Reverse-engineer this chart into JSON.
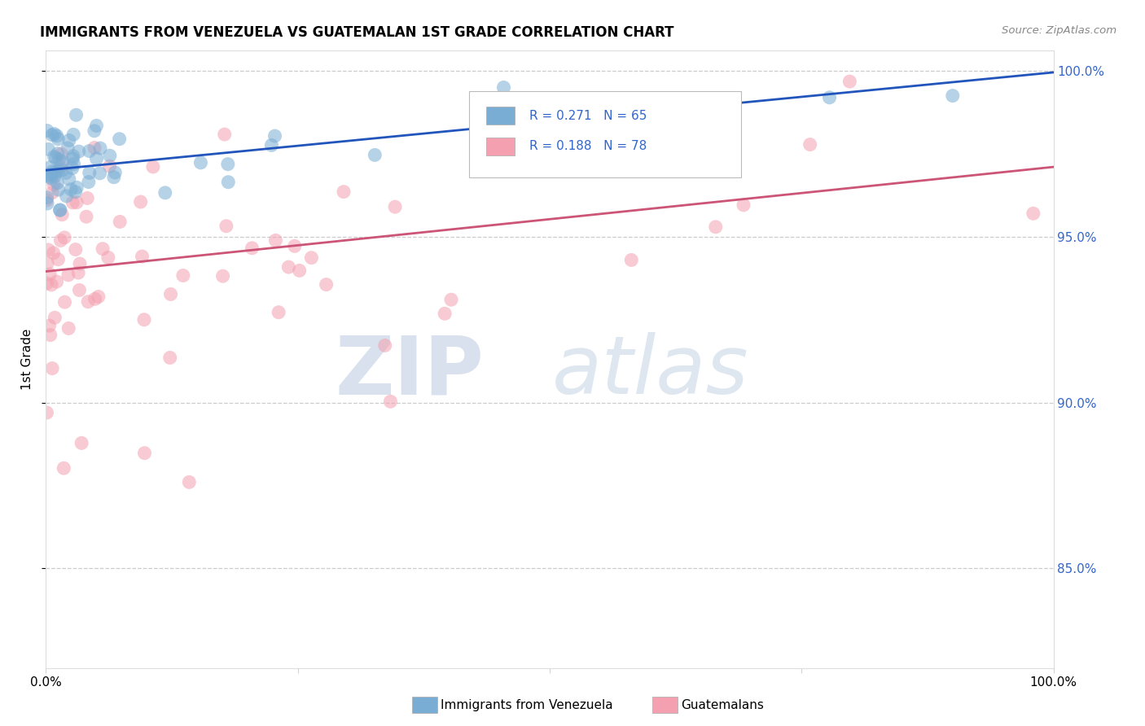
{
  "title": "IMMIGRANTS FROM VENEZUELA VS GUATEMALAN 1ST GRADE CORRELATION CHART",
  "source": "Source: ZipAtlas.com",
  "ylabel": "1st Grade",
  "legend_blue_label": "Immigrants from Venezuela",
  "legend_pink_label": "Guatemalans",
  "r_blue": 0.271,
  "n_blue": 65,
  "r_pink": 0.188,
  "n_pink": 78,
  "blue_color": "#7aadd4",
  "pink_color": "#f4a0b0",
  "blue_line_color": "#2255bb",
  "pink_line_color": "#cc5577",
  "blue_line_x0": 0.0,
  "blue_line_x1": 1.0,
  "blue_line_y0": 0.97,
  "blue_line_y1": 0.9995,
  "pink_line_x0": 0.0,
  "pink_line_x1": 1.0,
  "pink_line_y0": 0.9395,
  "pink_line_y1": 0.971,
  "x_min": 0.0,
  "x_max": 1.0,
  "y_min": 0.82,
  "y_max": 1.006,
  "y_ticks": [
    0.85,
    0.9,
    0.95,
    1.0
  ],
  "y_tick_labels": [
    "85.0%",
    "90.0%",
    "95.0%",
    "100.0%"
  ],
  "tick_color": "#3366CC",
  "watermark_zip": "ZIP",
  "watermark_atlas": "atlas"
}
